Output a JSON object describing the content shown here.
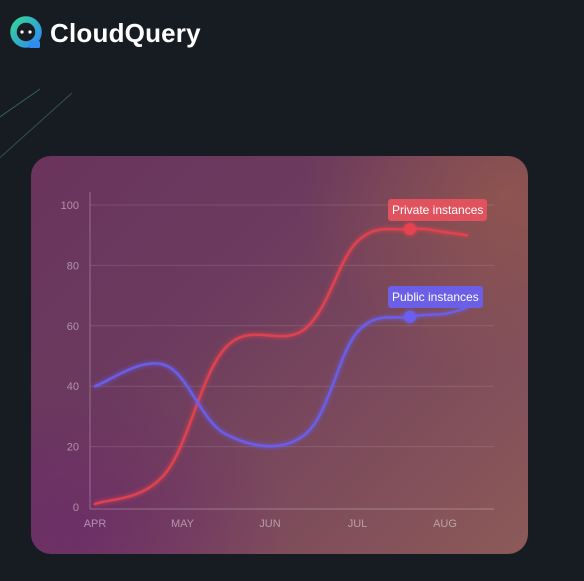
{
  "header": {
    "brand_name": "CloudQuery",
    "logo_icon": "cloudquery-logo-icon"
  },
  "colors": {
    "background": "#171c22",
    "private_series": "#e6424f",
    "public_series": "#6a5ff0",
    "logo_green": "#34d39b",
    "logo_blue": "#2f8cf0"
  },
  "chart_data": {
    "type": "line",
    "categories": [
      "APR",
      "MAY",
      "JUN",
      "JUL",
      "AUG"
    ],
    "yticks": [
      0,
      20,
      40,
      60,
      80,
      100
    ],
    "ylim": [
      0,
      100
    ],
    "grid": true,
    "smooth": true,
    "series": [
      {
        "name": "Private instances",
        "color": "#e6424f",
        "x": [
          0,
          0.8,
          1.5,
          2.4,
          3.0,
          3.6,
          4.0,
          4.25
        ],
        "y": [
          1,
          11,
          53,
          59,
          88,
          92,
          91,
          90
        ],
        "highlight": {
          "x": 3.6,
          "y": 92
        }
      },
      {
        "name": "Public instances",
        "color": "#6a5ff0",
        "x": [
          0,
          0.8,
          1.5,
          2.4,
          3.0,
          3.6,
          4.0,
          4.25
        ],
        "y": [
          40,
          47,
          24,
          24,
          58,
          63,
          64,
          66
        ],
        "highlight": {
          "x": 3.6,
          "y": 63
        }
      }
    ]
  }
}
